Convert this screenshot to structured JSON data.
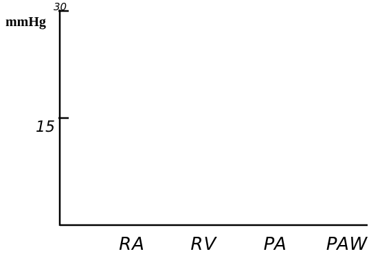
{
  "chart_data": {
    "type": "bar",
    "categories": [
      "RA",
      "RV",
      "PA",
      "PAW"
    ],
    "ylabel": "mmHg",
    "ylim": [
      0,
      30
    ],
    "yticks": [
      {
        "value": 15,
        "label": "15"
      },
      {
        "value": 30,
        "label": "30"
      }
    ],
    "grid": false,
    "colors": {
      "axis": "#000000",
      "background": "#ffffff"
    }
  }
}
